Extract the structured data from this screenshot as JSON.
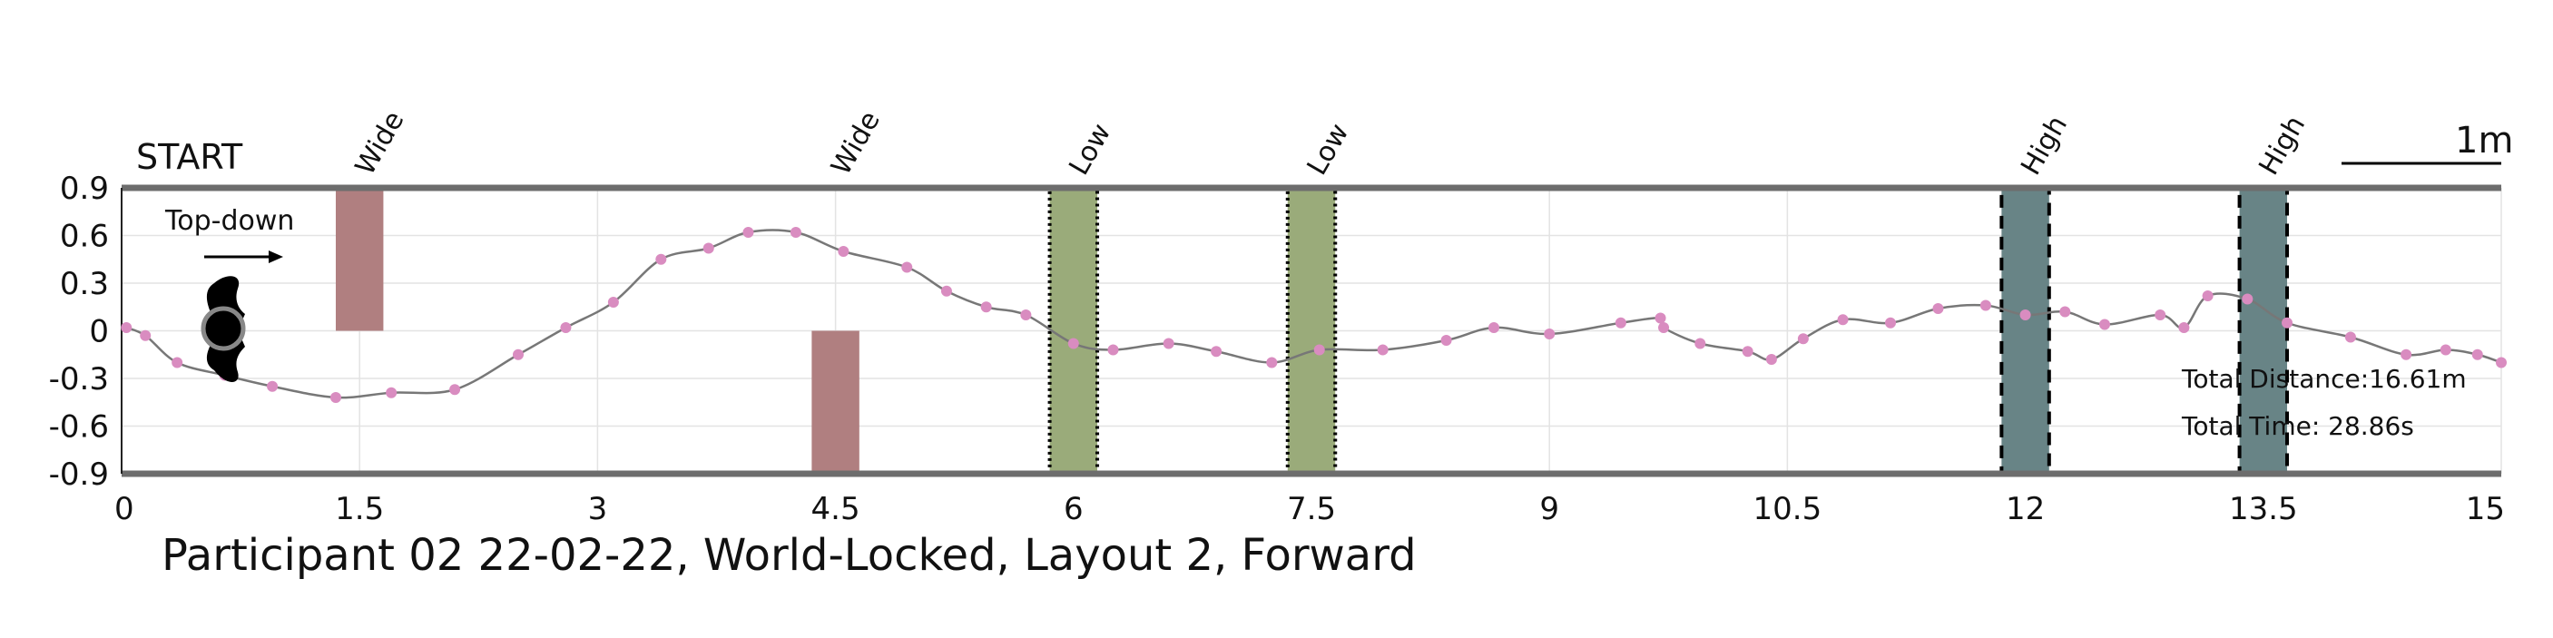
{
  "chart_data": {
    "type": "line",
    "title": "Participant 02 22-02-22, World-Locked, Layout 2, Forward",
    "start_label": "START",
    "direction_label": "Top-down",
    "scale_label": "1m",
    "xlabel": "",
    "ylabel": "",
    "xlim": [
      0,
      15
    ],
    "ylim": [
      -0.9,
      0.9
    ],
    "grid": true,
    "x_ticks": [
      "0",
      "1.5",
      "3",
      "4.5",
      "6",
      "7.5",
      "9",
      "10.5",
      "12",
      "13.5",
      "15"
    ],
    "y_ticks": [
      "0.9",
      "0.6",
      "0.3",
      "0",
      "-0.3",
      "-0.6",
      "-0.9"
    ],
    "x_tick_values": [
      0,
      1.5,
      3,
      4.5,
      6,
      7.5,
      9,
      10.5,
      12,
      13.5,
      15
    ],
    "y_tick_values": [
      0.9,
      0.6,
      0.3,
      0,
      -0.3,
      -0.6,
      -0.9
    ],
    "stats": [
      "Total Distance:16.61m",
      "Total Time: 28.86s"
    ],
    "obstacles": [
      {
        "label": "Wide",
        "type": "Wide",
        "x": [
          1.35,
          1.65
        ],
        "y": [
          0,
          0.9
        ]
      },
      {
        "label": "Wide",
        "type": "Wide",
        "x": [
          4.35,
          4.65
        ],
        "y": [
          -0.9,
          0
        ]
      },
      {
        "label": "Low",
        "type": "Low",
        "x": [
          5.85,
          6.15
        ],
        "y": [
          -0.9,
          0.9
        ]
      },
      {
        "label": "Low",
        "type": "Low",
        "x": [
          7.35,
          7.65
        ],
        "y": [
          -0.9,
          0.9
        ]
      },
      {
        "label": "High",
        "type": "High",
        "x": [
          11.85,
          12.15
        ],
        "y": [
          -0.9,
          0.9
        ]
      },
      {
        "label": "High",
        "type": "High",
        "x": [
          13.35,
          13.65
        ],
        "y": [
          -0.9,
          0.9
        ]
      }
    ],
    "obstacle_colors": {
      "Wide": "#b07f80",
      "Low": "#9aab7a",
      "High": "#688486"
    },
    "series": [
      {
        "color": "#777777",
        "marker_color": "#d98cc0",
        "points": [
          [
            0.03,
            0.02
          ],
          [
            0.15,
            -0.03
          ],
          [
            0.35,
            -0.2
          ],
          [
            0.65,
            -0.28
          ],
          [
            0.95,
            -0.35
          ],
          [
            1.35,
            -0.42
          ],
          [
            1.7,
            -0.39
          ],
          [
            2.1,
            -0.37
          ],
          [
            2.5,
            -0.15
          ],
          [
            2.8,
            0.02
          ],
          [
            3.1,
            0.18
          ],
          [
            3.4,
            0.45
          ],
          [
            3.7,
            0.52
          ],
          [
            3.95,
            0.62
          ],
          [
            4.25,
            0.62
          ],
          [
            4.55,
            0.5
          ],
          [
            4.95,
            0.4
          ],
          [
            5.2,
            0.25
          ],
          [
            5.45,
            0.15
          ],
          [
            5.7,
            0.1
          ],
          [
            6.0,
            -0.08
          ],
          [
            6.25,
            -0.12
          ],
          [
            6.6,
            -0.08
          ],
          [
            6.9,
            -0.13
          ],
          [
            7.25,
            -0.2
          ],
          [
            7.55,
            -0.12
          ],
          [
            7.95,
            -0.12
          ],
          [
            8.35,
            -0.06
          ],
          [
            8.65,
            0.02
          ],
          [
            9.0,
            -0.02
          ],
          [
            9.45,
            0.05
          ],
          [
            9.7,
            0.08
          ],
          [
            9.72,
            0.02
          ],
          [
            9.95,
            -0.08
          ],
          [
            10.25,
            -0.13
          ],
          [
            10.4,
            -0.18
          ],
          [
            10.6,
            -0.05
          ],
          [
            10.85,
            0.07
          ],
          [
            11.15,
            0.05
          ],
          [
            11.45,
            0.14
          ],
          [
            11.75,
            0.16
          ],
          [
            12.0,
            0.1
          ],
          [
            12.25,
            0.12
          ],
          [
            12.5,
            0.04
          ],
          [
            12.85,
            0.1
          ],
          [
            13.0,
            0.02
          ],
          [
            13.15,
            0.22
          ],
          [
            13.4,
            0.2
          ],
          [
            13.65,
            0.05
          ],
          [
            14.05,
            -0.04
          ],
          [
            14.4,
            -0.15
          ],
          [
            14.65,
            -0.12
          ],
          [
            14.85,
            -0.15
          ],
          [
            15.0,
            -0.2
          ]
        ]
      }
    ]
  }
}
